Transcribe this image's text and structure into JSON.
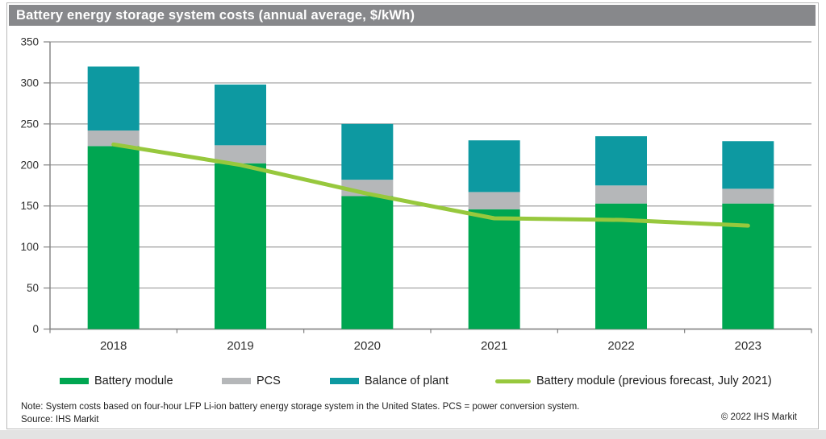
{
  "title": "Battery energy storage system costs (annual average, $/kWh)",
  "colors": {
    "title_bar_bg": "#87888b",
    "title_text": "#ffffff",
    "battery_module": "#00a651",
    "pcs": "#b5b7b9",
    "balance_of_plant": "#0d99a1",
    "forecast_line": "#97c83d",
    "gridline": "#9d9d9d",
    "axis": "#808080",
    "axis_label": "#2e2e2e"
  },
  "chart_data": {
    "type": "bar",
    "stacked": true,
    "title": "Battery energy storage system costs (annual average, $/kWh)",
    "xlabel": "",
    "ylabel": "",
    "categories": [
      "2018",
      "2019",
      "2020",
      "2021",
      "2022",
      "2023"
    ],
    "series": [
      {
        "name": "Battery module",
        "type": "bar",
        "color": "#00a651",
        "values": [
          223,
          202,
          162,
          146,
          153,
          153
        ]
      },
      {
        "name": "PCS",
        "type": "bar",
        "color": "#b5b7b9",
        "values": [
          19,
          22,
          20,
          21,
          22,
          18
        ]
      },
      {
        "name": "Balance of plant",
        "type": "bar",
        "color": "#0d99a1",
        "values": [
          78,
          74,
          68,
          63,
          60,
          58
        ]
      },
      {
        "name": "Battery module (previous forecast, July 2021)",
        "type": "line",
        "color": "#97c83d",
        "values": [
          225,
          200,
          165,
          135,
          133,
          126
        ]
      }
    ],
    "bar_totals": [
      320,
      298,
      250,
      230,
      235,
      229
    ],
    "ylim": [
      0,
      350
    ],
    "yticks": [
      0,
      50,
      100,
      150,
      200,
      250,
      300,
      350
    ],
    "grid": true,
    "legend_position": "bottom"
  },
  "legend": [
    {
      "label": "Battery module",
      "swatch": "bar",
      "color": "#00a651"
    },
    {
      "label": "PCS",
      "swatch": "bar",
      "color": "#b5b7b9"
    },
    {
      "label": "Balance of plant",
      "swatch": "bar",
      "color": "#0d99a1"
    },
    {
      "label": "Battery module (previous forecast, July 2021)",
      "swatch": "line",
      "color": "#97c83d"
    }
  ],
  "footer": {
    "note": "Note: System costs based on four-hour LFP Li-ion battery energy storage system in the United States. PCS = power conversion system.",
    "source": "Source: IHS Markit",
    "copyright": "© 2022 IHS Markit"
  }
}
